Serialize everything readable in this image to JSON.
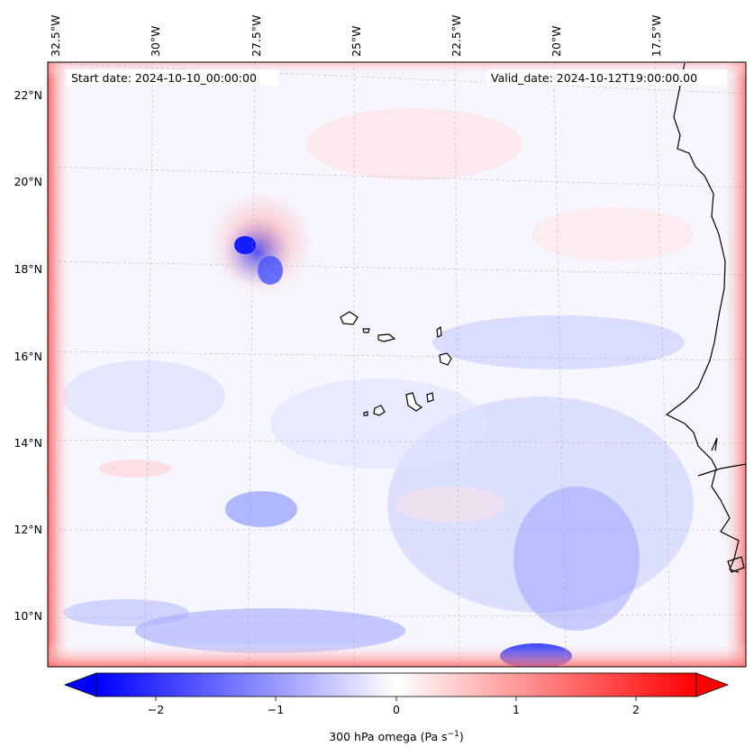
{
  "map": {
    "header": {
      "start_label": "Start date: 2024-10-10_00:00:00",
      "valid_label": "Valid_date: 2024-10-12T19:00:00.00"
    },
    "lon_labels": [
      "32.5°W",
      "30°W",
      "27.5°W",
      "25°W",
      "22.5°W",
      "20°W",
      "17.5°W"
    ],
    "lat_labels": [
      "22°N",
      "20°N",
      "18°N",
      "16°N",
      "14°N",
      "12°N",
      "10°N"
    ],
    "features": {
      "islands": "Cabo Verde islands",
      "coastline": "West African coast"
    }
  },
  "colorbar": {
    "ticks": [
      "−2",
      "−1",
      "0",
      "1",
      "2"
    ],
    "label_main": "300 hPa omega (Pa s",
    "label_sup": "−1",
    "label_end": ")",
    "colors": {
      "negative": "#0000ff",
      "zero": "#ffffff",
      "positive": "#ff0000"
    }
  }
}
